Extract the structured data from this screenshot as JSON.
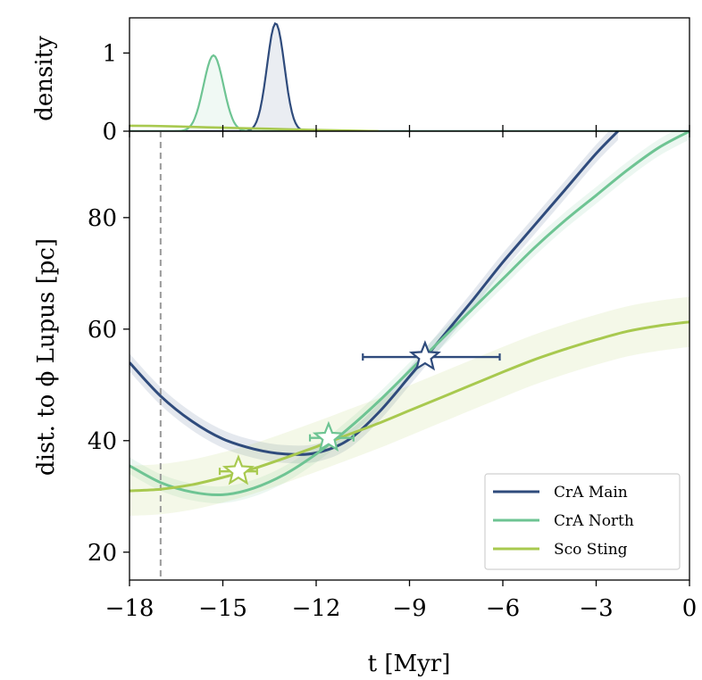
{
  "chart_data": [
    {
      "type": "area",
      "panel": "top",
      "ylabel": "density",
      "yticks": [
        0,
        1
      ],
      "ylim": [
        0,
        1.45
      ],
      "xlim": [
        -18,
        0
      ],
      "series": [
        {
          "name": "CrA Main",
          "color": "#2f4b7c",
          "kind": "gaussian",
          "peak_x": -13.3,
          "peak_y": 1.38,
          "sigma": 0.28
        },
        {
          "name": "CrA North",
          "color": "#6ec493",
          "kind": "gaussian",
          "peak_x": -15.3,
          "peak_y": 0.97,
          "sigma": 0.32
        },
        {
          "name": "Sco Sting",
          "color": "#a8c94f",
          "kind": "decay",
          "x": [
            -18,
            -17,
            -16,
            -15,
            -14,
            -13,
            -12,
            -11,
            -10
          ],
          "y": [
            0.07,
            0.065,
            0.055,
            0.045,
            0.035,
            0.025,
            0.015,
            0.008,
            0.0
          ]
        }
      ]
    },
    {
      "type": "line",
      "panel": "main",
      "xlabel": "t [Myr]",
      "ylabel": "dist. to ϕ Lupus [pc]",
      "xlim": [
        -18,
        0
      ],
      "ylim": [
        15,
        95.5
      ],
      "xticks": [
        -18,
        -15,
        -12,
        -9,
        -6,
        -3,
        0
      ],
      "xtick_labels": [
        "−18",
        "−15",
        "−12",
        "−9",
        "−6",
        "−3",
        "0"
      ],
      "yticks": [
        20,
        40,
        60,
        80
      ],
      "vline_x": -17,
      "legend_position": "lower-right",
      "series": [
        {
          "name": "CrA Main",
          "color": "#2f4b7c",
          "x": [
            -18,
            -17,
            -16,
            -15,
            -14,
            -13,
            -12,
            -11,
            -10,
            -9,
            -8,
            -7,
            -6,
            -5,
            -4,
            -3,
            -2.3
          ],
          "y": [
            54,
            48,
            43.5,
            40.3,
            38.5,
            37.6,
            37.8,
            40,
            45,
            51.5,
            58.2,
            65,
            72,
            78.5,
            85,
            91.5,
            95.5
          ],
          "band": 1.6,
          "marker": {
            "x": -8.5,
            "y": 55,
            "xerr_low": 2.0,
            "xerr_high": 2.4
          }
        },
        {
          "name": "CrA North",
          "color": "#6ec493",
          "x": [
            -18,
            -17,
            -16,
            -15,
            -14,
            -13,
            -12,
            -11,
            -10,
            -9,
            -8,
            -7,
            -6,
            -5,
            -4,
            -3,
            -2,
            -1,
            0
          ],
          "y": [
            35.5,
            32.5,
            30.8,
            30.3,
            31.5,
            34,
            37.6,
            42,
            47,
            52.5,
            58,
            63.5,
            69,
            74.5,
            79.5,
            84,
            88.5,
            92.5,
            95.5
          ],
          "band": 1.5,
          "marker": {
            "x": -11.6,
            "y": 40.5,
            "xerr_low": 0.6,
            "xerr_high": 0.8
          }
        },
        {
          "name": "Sco Sting",
          "color": "#a8c94f",
          "x": [
            -18,
            -17,
            -16,
            -15,
            -14,
            -13,
            -12,
            -11,
            -10,
            -9,
            -8,
            -7,
            -6,
            -5,
            -4,
            -3,
            -2,
            -1,
            0
          ],
          "y": [
            31,
            31.3,
            32.1,
            33.4,
            35,
            36.9,
            38.9,
            41,
            43.1,
            45.4,
            47.7,
            50,
            52.3,
            54.5,
            56.4,
            58.1,
            59.6,
            60.6,
            61.3
          ],
          "band": 4.5,
          "marker": {
            "x": -14.5,
            "y": 34.5,
            "xerr_low": 0.6,
            "xerr_high": 0.6
          }
        }
      ]
    }
  ]
}
